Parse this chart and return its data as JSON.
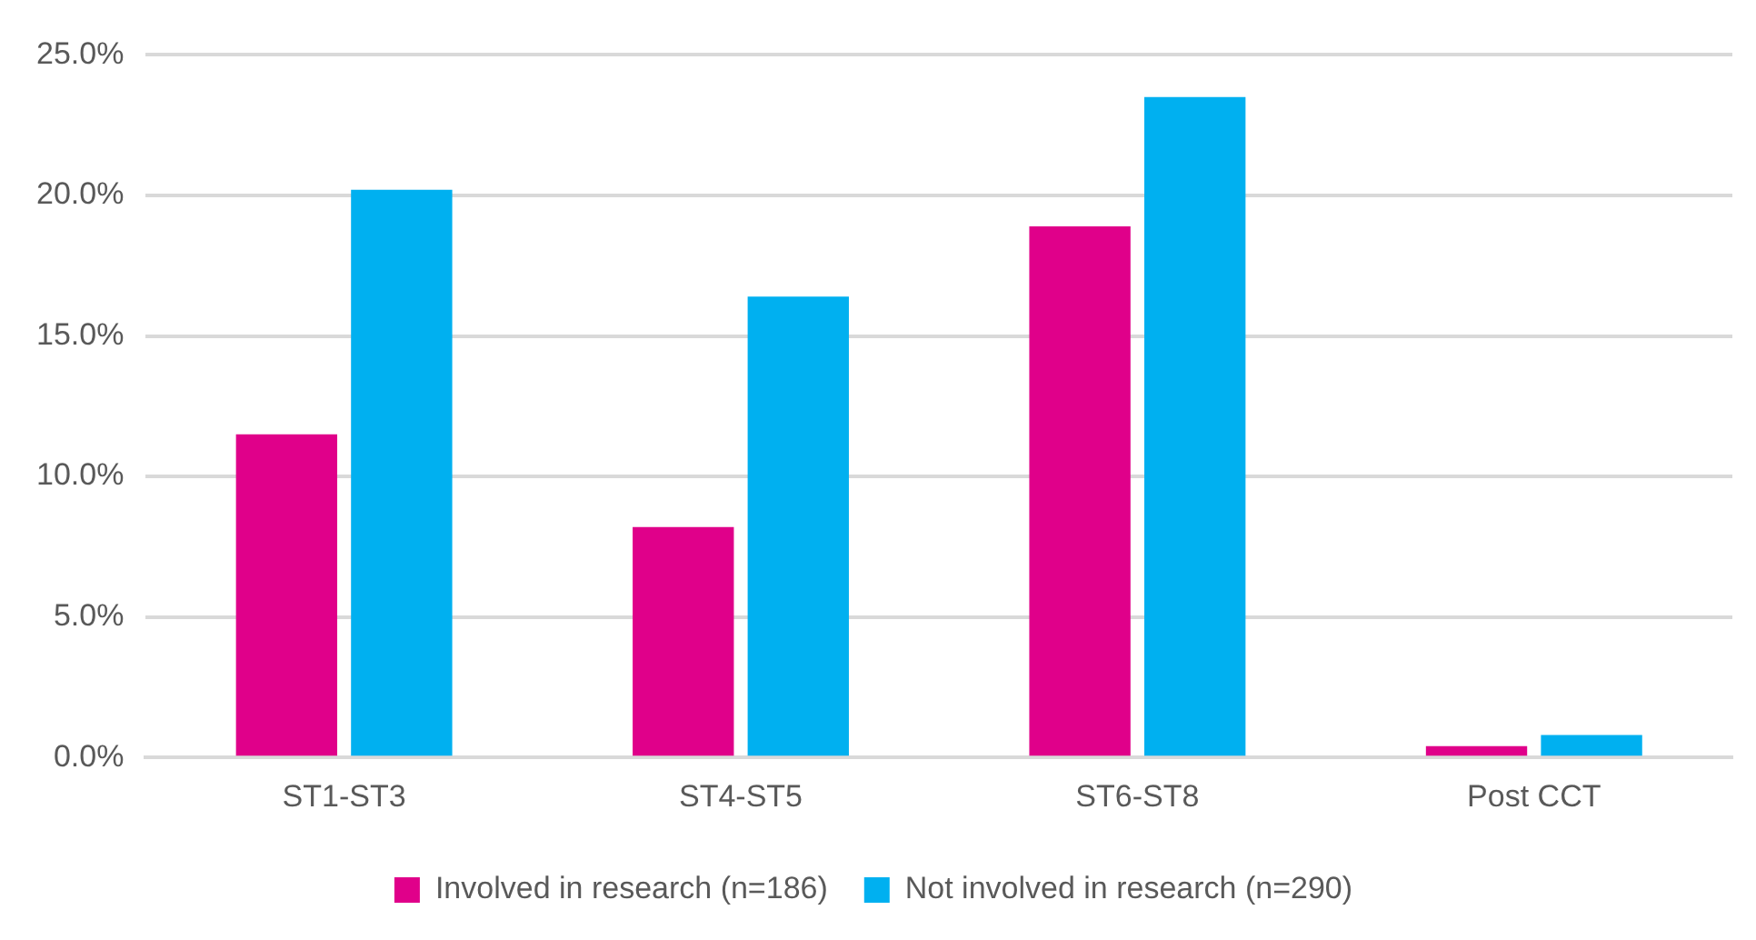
{
  "chart_data": {
    "type": "bar",
    "categories": [
      "ST1-ST3",
      "ST4-ST5",
      "ST6-ST8",
      "Post CCT"
    ],
    "series": [
      {
        "name": "Involved in research (n=186)",
        "color": "#e0008a",
        "values": [
          11.5,
          8.2,
          18.9,
          0.4
        ]
      },
      {
        "name": "Not involved in research (n=290)",
        "color": "#00b0f0",
        "values": [
          20.2,
          16.4,
          23.5,
          0.8
        ]
      }
    ],
    "ylim": [
      0,
      25
    ],
    "yticks": [
      {
        "value": 0,
        "label": "0.0%"
      },
      {
        "value": 5,
        "label": "5.0%"
      },
      {
        "value": 10,
        "label": "10.0%"
      },
      {
        "value": 15,
        "label": "15.0%"
      },
      {
        "value": 20,
        "label": "20.0%"
      },
      {
        "value": 25,
        "label": "25.0%"
      }
    ],
    "grid": "y",
    "legend": "bottom"
  }
}
